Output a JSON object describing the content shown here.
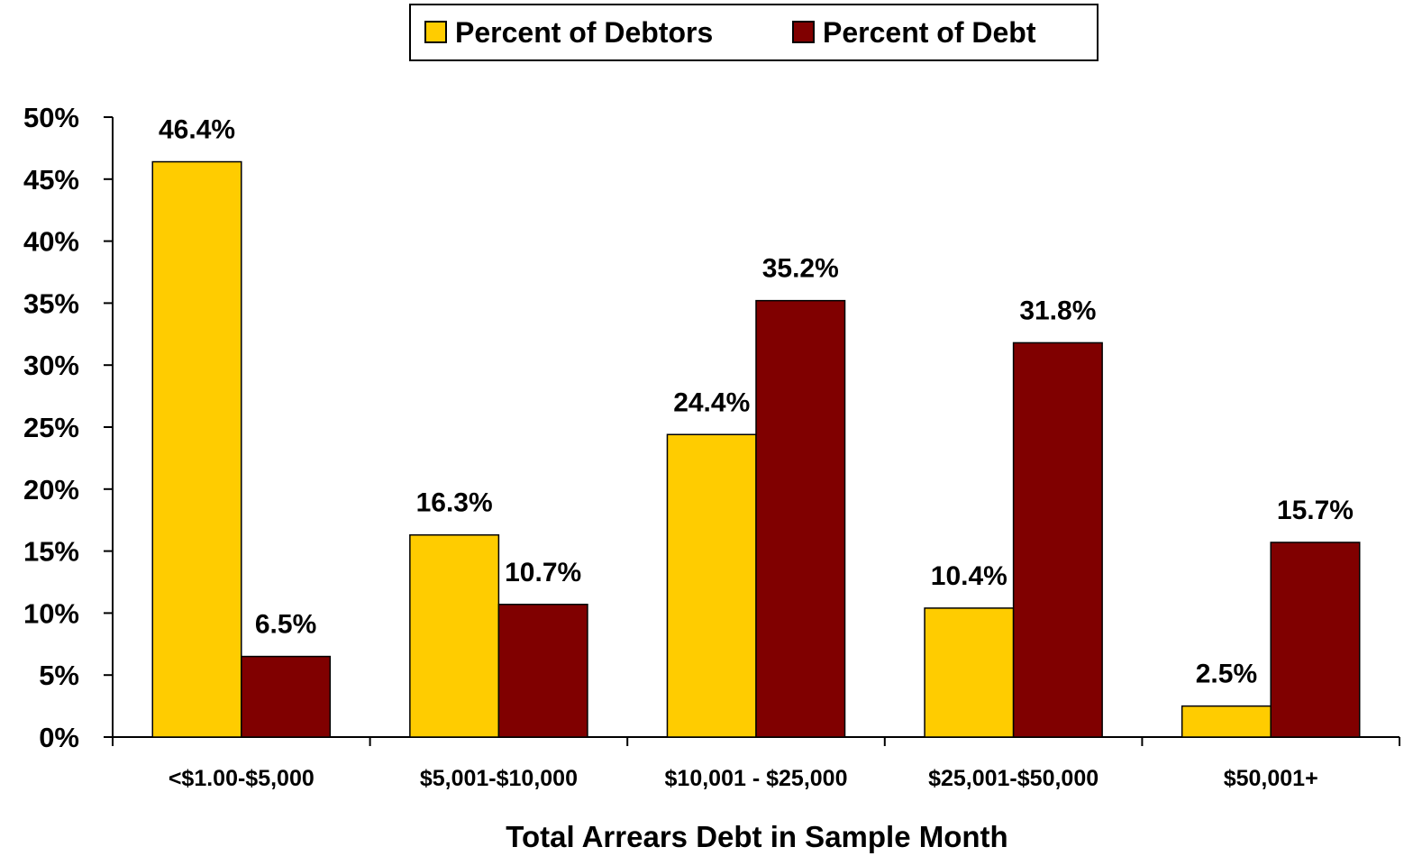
{
  "chart_data": {
    "type": "bar",
    "title": "",
    "xlabel": "Total Arrears Debt in Sample Month",
    "ylabel": "",
    "categories": [
      "<$1.00-$5,000",
      "$5,001-$10,000",
      "$10,001 - $25,000",
      "$25,001-$50,000",
      "$50,001+"
    ],
    "series": [
      {
        "name": "Percent of Debtors",
        "color": "#FFCC00",
        "values": [
          46.4,
          16.3,
          24.4,
          10.4,
          2.5
        ],
        "labels": [
          "46.4%",
          "16.3%",
          "24.4%",
          "10.4%",
          "2.5%"
        ]
      },
      {
        "name": "Percent of Debt",
        "color": "#800000",
        "values": [
          6.5,
          10.7,
          35.2,
          31.8,
          15.7
        ],
        "labels": [
          "6.5%",
          "10.7%",
          "35.2%",
          "31.8%",
          "15.7%"
        ]
      }
    ],
    "ylim": [
      0,
      50
    ],
    "yticks": [
      0,
      5,
      10,
      15,
      20,
      25,
      30,
      35,
      40,
      45,
      50
    ],
    "ytick_labels": [
      "0%",
      "5%",
      "10%",
      "15%",
      "20%",
      "25%",
      "30%",
      "35%",
      "40%",
      "45%",
      "50%"
    ],
    "grid": false,
    "legend_position": "top-center"
  }
}
